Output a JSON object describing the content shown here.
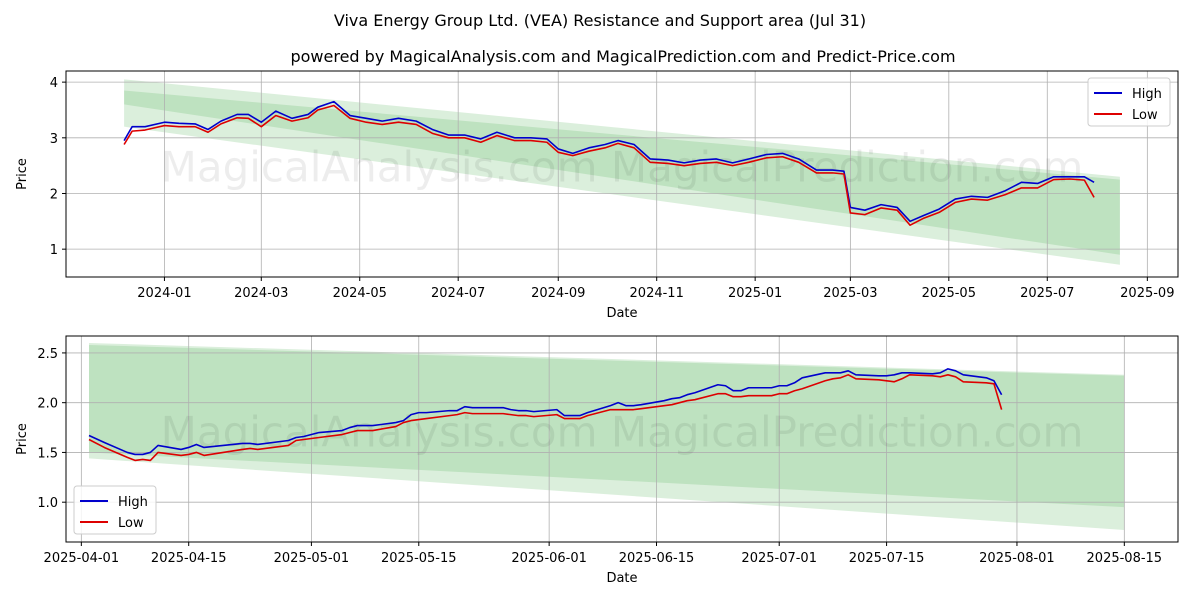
{
  "title": "Viva Energy Group Ltd. (VEA) Resistance and Support area (Jul 31)",
  "subtitle": "powered by MagicalAnalysis.com and MagicalPrediction.com and Predict-Price.com",
  "watermark": "MagicalAnalysis.com    MagicalPrediction.com",
  "colors": {
    "high": "#0000cc",
    "low": "#dd0000",
    "band": "#4caf50",
    "grid": "#b0b0b0"
  },
  "chart_data": [
    {
      "type": "line",
      "xlabel": "Date",
      "ylabel": "Price",
      "xlim": [
        "2023-11-01",
        "2025-09-20"
      ],
      "ylim": [
        0.5,
        4.2
      ],
      "xticks": [
        "2024-01",
        "2024-03",
        "2024-05",
        "2024-07",
        "2024-09",
        "2024-11",
        "2025-01",
        "2025-03",
        "2025-05",
        "2025-07",
        "2025-09"
      ],
      "yticks": [
        1,
        2,
        3,
        4
      ],
      "grid": true,
      "legend": "top-right",
      "bands": [
        {
          "x": [
            "2023-12-07",
            "2025-08-15"
          ],
          "upper": [
            4.05,
            2.3
          ],
          "lower": [
            3.6,
            0.9
          ]
        },
        {
          "x": [
            "2023-12-07",
            "2025-08-15"
          ],
          "upper": [
            3.85,
            2.25
          ],
          "lower": [
            3.2,
            0.72
          ]
        }
      ],
      "series": [
        {
          "name": "High",
          "x": [
            "2023-12-07",
            "2023-12-12",
            "2023-12-20",
            "2024-01-01",
            "2024-01-10",
            "2024-01-20",
            "2024-01-28",
            "2024-02-05",
            "2024-02-15",
            "2024-02-22",
            "2024-03-01",
            "2024-03-10",
            "2024-03-20",
            "2024-03-30",
            "2024-04-05",
            "2024-04-15",
            "2024-04-25",
            "2024-05-05",
            "2024-05-15",
            "2024-05-25",
            "2024-06-05",
            "2024-06-15",
            "2024-06-25",
            "2024-07-05",
            "2024-07-15",
            "2024-07-25",
            "2024-08-05",
            "2024-08-15",
            "2024-08-25",
            "2024-09-01",
            "2024-09-10",
            "2024-09-20",
            "2024-09-30",
            "2024-10-08",
            "2024-10-18",
            "2024-10-28",
            "2024-11-08",
            "2024-11-18",
            "2024-11-28",
            "2024-12-08",
            "2024-12-18",
            "2024-12-28",
            "2025-01-08",
            "2025-01-18",
            "2025-01-28",
            "2025-02-08",
            "2025-02-18",
            "2025-02-25",
            "2025-03-01",
            "2025-03-10",
            "2025-03-20",
            "2025-03-30",
            "2025-04-07",
            "2025-04-15",
            "2025-04-25",
            "2025-05-05",
            "2025-05-15",
            "2025-05-25",
            "2025-06-05",
            "2025-06-15",
            "2025-06-25",
            "2025-07-05",
            "2025-07-15",
            "2025-07-24",
            "2025-07-30"
          ],
          "values": [
            2.95,
            3.2,
            3.2,
            3.28,
            3.26,
            3.25,
            3.15,
            3.3,
            3.42,
            3.42,
            3.28,
            3.48,
            3.35,
            3.42,
            3.55,
            3.65,
            3.4,
            3.35,
            3.3,
            3.35,
            3.3,
            3.15,
            3.05,
            3.05,
            2.98,
            3.1,
            3.0,
            3.0,
            2.98,
            2.8,
            2.72,
            2.82,
            2.88,
            2.95,
            2.88,
            2.62,
            2.6,
            2.55,
            2.6,
            2.62,
            2.55,
            2.62,
            2.7,
            2.72,
            2.62,
            2.42,
            2.42,
            2.4,
            1.75,
            1.7,
            1.8,
            1.75,
            1.5,
            1.6,
            1.72,
            1.9,
            1.95,
            1.93,
            2.05,
            2.2,
            2.18,
            2.3,
            2.3,
            2.3,
            2.2
          ]
        },
        {
          "name": "Low",
          "x": [
            "2023-12-07",
            "2023-12-12",
            "2023-12-20",
            "2024-01-01",
            "2024-01-10",
            "2024-01-20",
            "2024-01-28",
            "2024-02-05",
            "2024-02-15",
            "2024-02-22",
            "2024-03-01",
            "2024-03-10",
            "2024-03-20",
            "2024-03-30",
            "2024-04-05",
            "2024-04-15",
            "2024-04-25",
            "2024-05-05",
            "2024-05-15",
            "2024-05-25",
            "2024-06-05",
            "2024-06-15",
            "2024-06-25",
            "2024-07-05",
            "2024-07-15",
            "2024-07-25",
            "2024-08-05",
            "2024-08-15",
            "2024-08-25",
            "2024-09-01",
            "2024-09-10",
            "2024-09-20",
            "2024-09-30",
            "2024-10-08",
            "2024-10-18",
            "2024-10-28",
            "2024-11-08",
            "2024-11-18",
            "2024-11-28",
            "2024-12-08",
            "2024-12-18",
            "2024-12-28",
            "2025-01-08",
            "2025-01-18",
            "2025-01-28",
            "2025-02-08",
            "2025-02-18",
            "2025-02-25",
            "2025-03-01",
            "2025-03-10",
            "2025-03-20",
            "2025-03-30",
            "2025-04-07",
            "2025-04-15",
            "2025-04-25",
            "2025-05-05",
            "2025-05-15",
            "2025-05-25",
            "2025-06-05",
            "2025-06-15",
            "2025-06-25",
            "2025-07-05",
            "2025-07-15",
            "2025-07-24",
            "2025-07-30"
          ],
          "values": [
            2.88,
            3.12,
            3.14,
            3.22,
            3.2,
            3.2,
            3.1,
            3.25,
            3.36,
            3.35,
            3.2,
            3.4,
            3.3,
            3.36,
            3.5,
            3.58,
            3.35,
            3.28,
            3.24,
            3.28,
            3.24,
            3.08,
            3.0,
            3.0,
            2.92,
            3.04,
            2.95,
            2.95,
            2.92,
            2.74,
            2.68,
            2.76,
            2.82,
            2.9,
            2.82,
            2.56,
            2.54,
            2.5,
            2.54,
            2.56,
            2.5,
            2.56,
            2.64,
            2.66,
            2.56,
            2.37,
            2.37,
            2.35,
            1.65,
            1.62,
            1.74,
            1.7,
            1.43,
            1.55,
            1.66,
            1.84,
            1.9,
            1.88,
            1.98,
            2.1,
            2.1,
            2.25,
            2.26,
            2.24,
            1.93
          ]
        }
      ]
    },
    {
      "type": "line",
      "xlabel": "Date",
      "ylabel": "Price",
      "xlim": [
        "2025-03-30",
        "2025-08-22"
      ],
      "ylim": [
        0.6,
        2.67
      ],
      "xticks": [
        "2025-04-01",
        "2025-04-15",
        "2025-05-01",
        "2025-05-15",
        "2025-06-01",
        "2025-06-15",
        "2025-07-01",
        "2025-07-15",
        "2025-08-01",
        "2025-08-15"
      ],
      "yticks": [
        1.0,
        1.5,
        2.0,
        2.5
      ],
      "grid": true,
      "legend": "bottom-left",
      "bands": [
        {
          "x": [
            "2025-04-02",
            "2025-08-15"
          ],
          "upper": [
            2.6,
            2.28
          ],
          "lower": [
            1.5,
            0.95
          ]
        },
        {
          "x": [
            "2025-04-02",
            "2025-08-15"
          ],
          "upper": [
            2.58,
            2.27
          ],
          "lower": [
            1.44,
            0.72
          ]
        }
      ],
      "series": [
        {
          "name": "High",
          "x": [
            "2025-04-02",
            "2025-04-04",
            "2025-04-07",
            "2025-04-08",
            "2025-04-09",
            "2025-04-10",
            "2025-04-11",
            "2025-04-14",
            "2025-04-15",
            "2025-04-16",
            "2025-04-17",
            "2025-04-22",
            "2025-04-23",
            "2025-04-24",
            "2025-04-28",
            "2025-04-29",
            "2025-04-30",
            "2025-05-01",
            "2025-05-02",
            "2025-05-05",
            "2025-05-06",
            "2025-05-07",
            "2025-05-08",
            "2025-05-09",
            "2025-05-12",
            "2025-05-13",
            "2025-05-14",
            "2025-05-15",
            "2025-05-16",
            "2025-05-19",
            "2025-05-20",
            "2025-05-21",
            "2025-05-22",
            "2025-05-26",
            "2025-05-27",
            "2025-05-28",
            "2025-05-29",
            "2025-05-30",
            "2025-06-02",
            "2025-06-03",
            "2025-06-04",
            "2025-06-05",
            "2025-06-06",
            "2025-06-09",
            "2025-06-10",
            "2025-06-11",
            "2025-06-12",
            "2025-06-13",
            "2025-06-16",
            "2025-06-17",
            "2025-06-18",
            "2025-06-19",
            "2025-06-20",
            "2025-06-23",
            "2025-06-24",
            "2025-06-25",
            "2025-06-26",
            "2025-06-27",
            "2025-06-30",
            "2025-07-01",
            "2025-07-02",
            "2025-07-03",
            "2025-07-04",
            "2025-07-07",
            "2025-07-08",
            "2025-07-09",
            "2025-07-10",
            "2025-07-11",
            "2025-07-14",
            "2025-07-15",
            "2025-07-16",
            "2025-07-17",
            "2025-07-18",
            "2025-07-21",
            "2025-07-22",
            "2025-07-23",
            "2025-07-24",
            "2025-07-25",
            "2025-07-28",
            "2025-07-29",
            "2025-07-30"
          ],
          "values": [
            1.67,
            1.6,
            1.5,
            1.48,
            1.48,
            1.5,
            1.57,
            1.53,
            1.55,
            1.58,
            1.55,
            1.59,
            1.59,
            1.58,
            1.62,
            1.65,
            1.66,
            1.68,
            1.7,
            1.72,
            1.75,
            1.77,
            1.77,
            1.77,
            1.8,
            1.82,
            1.88,
            1.9,
            1.9,
            1.92,
            1.92,
            1.96,
            1.95,
            1.95,
            1.93,
            1.92,
            1.92,
            1.91,
            1.93,
            1.87,
            1.87,
            1.87,
            1.9,
            1.97,
            2.0,
            1.97,
            1.97,
            1.98,
            2.02,
            2.04,
            2.05,
            2.08,
            2.1,
            2.18,
            2.17,
            2.12,
            2.12,
            2.15,
            2.15,
            2.17,
            2.17,
            2.2,
            2.25,
            2.3,
            2.3,
            2.3,
            2.32,
            2.28,
            2.27,
            2.27,
            2.28,
            2.3,
            2.3,
            2.29,
            2.3,
            2.34,
            2.32,
            2.28,
            2.25,
            2.22,
            2.08
          ]
        },
        {
          "name": "Low",
          "x": [
            "2025-04-02",
            "2025-04-04",
            "2025-04-07",
            "2025-04-08",
            "2025-04-09",
            "2025-04-10",
            "2025-04-11",
            "2025-04-14",
            "2025-04-15",
            "2025-04-16",
            "2025-04-17",
            "2025-04-22",
            "2025-04-23",
            "2025-04-24",
            "2025-04-28",
            "2025-04-29",
            "2025-04-30",
            "2025-05-01",
            "2025-05-02",
            "2025-05-05",
            "2025-05-06",
            "2025-05-07",
            "2025-05-08",
            "2025-05-09",
            "2025-05-12",
            "2025-05-13",
            "2025-05-14",
            "2025-05-15",
            "2025-05-16",
            "2025-05-19",
            "2025-05-20",
            "2025-05-21",
            "2025-05-22",
            "2025-05-26",
            "2025-05-27",
            "2025-05-28",
            "2025-05-29",
            "2025-05-30",
            "2025-06-02",
            "2025-06-03",
            "2025-06-04",
            "2025-06-05",
            "2025-06-06",
            "2025-06-09",
            "2025-06-10",
            "2025-06-11",
            "2025-06-12",
            "2025-06-13",
            "2025-06-16",
            "2025-06-17",
            "2025-06-18",
            "2025-06-19",
            "2025-06-20",
            "2025-06-23",
            "2025-06-24",
            "2025-06-25",
            "2025-06-26",
            "2025-06-27",
            "2025-06-30",
            "2025-07-01",
            "2025-07-02",
            "2025-07-03",
            "2025-07-04",
            "2025-07-07",
            "2025-07-08",
            "2025-07-09",
            "2025-07-10",
            "2025-07-11",
            "2025-07-14",
            "2025-07-15",
            "2025-07-16",
            "2025-07-17",
            "2025-07-18",
            "2025-07-21",
            "2025-07-22",
            "2025-07-23",
            "2025-07-24",
            "2025-07-25",
            "2025-07-28",
            "2025-07-29",
            "2025-07-30"
          ],
          "values": [
            1.63,
            1.55,
            1.45,
            1.42,
            1.43,
            1.42,
            1.5,
            1.47,
            1.48,
            1.5,
            1.47,
            1.53,
            1.54,
            1.53,
            1.57,
            1.62,
            1.63,
            1.64,
            1.65,
            1.68,
            1.7,
            1.72,
            1.72,
            1.72,
            1.76,
            1.8,
            1.82,
            1.83,
            1.84,
            1.87,
            1.88,
            1.9,
            1.89,
            1.89,
            1.88,
            1.87,
            1.87,
            1.86,
            1.88,
            1.84,
            1.84,
            1.84,
            1.87,
            1.93,
            1.93,
            1.93,
            1.93,
            1.94,
            1.97,
            1.98,
            2.0,
            2.02,
            2.03,
            2.09,
            2.09,
            2.06,
            2.06,
            2.07,
            2.07,
            2.09,
            2.09,
            2.12,
            2.14,
            2.22,
            2.24,
            2.25,
            2.28,
            2.24,
            2.23,
            2.22,
            2.21,
            2.24,
            2.28,
            2.27,
            2.26,
            2.28,
            2.26,
            2.21,
            2.2,
            2.19,
            1.93
          ]
        }
      ]
    }
  ]
}
